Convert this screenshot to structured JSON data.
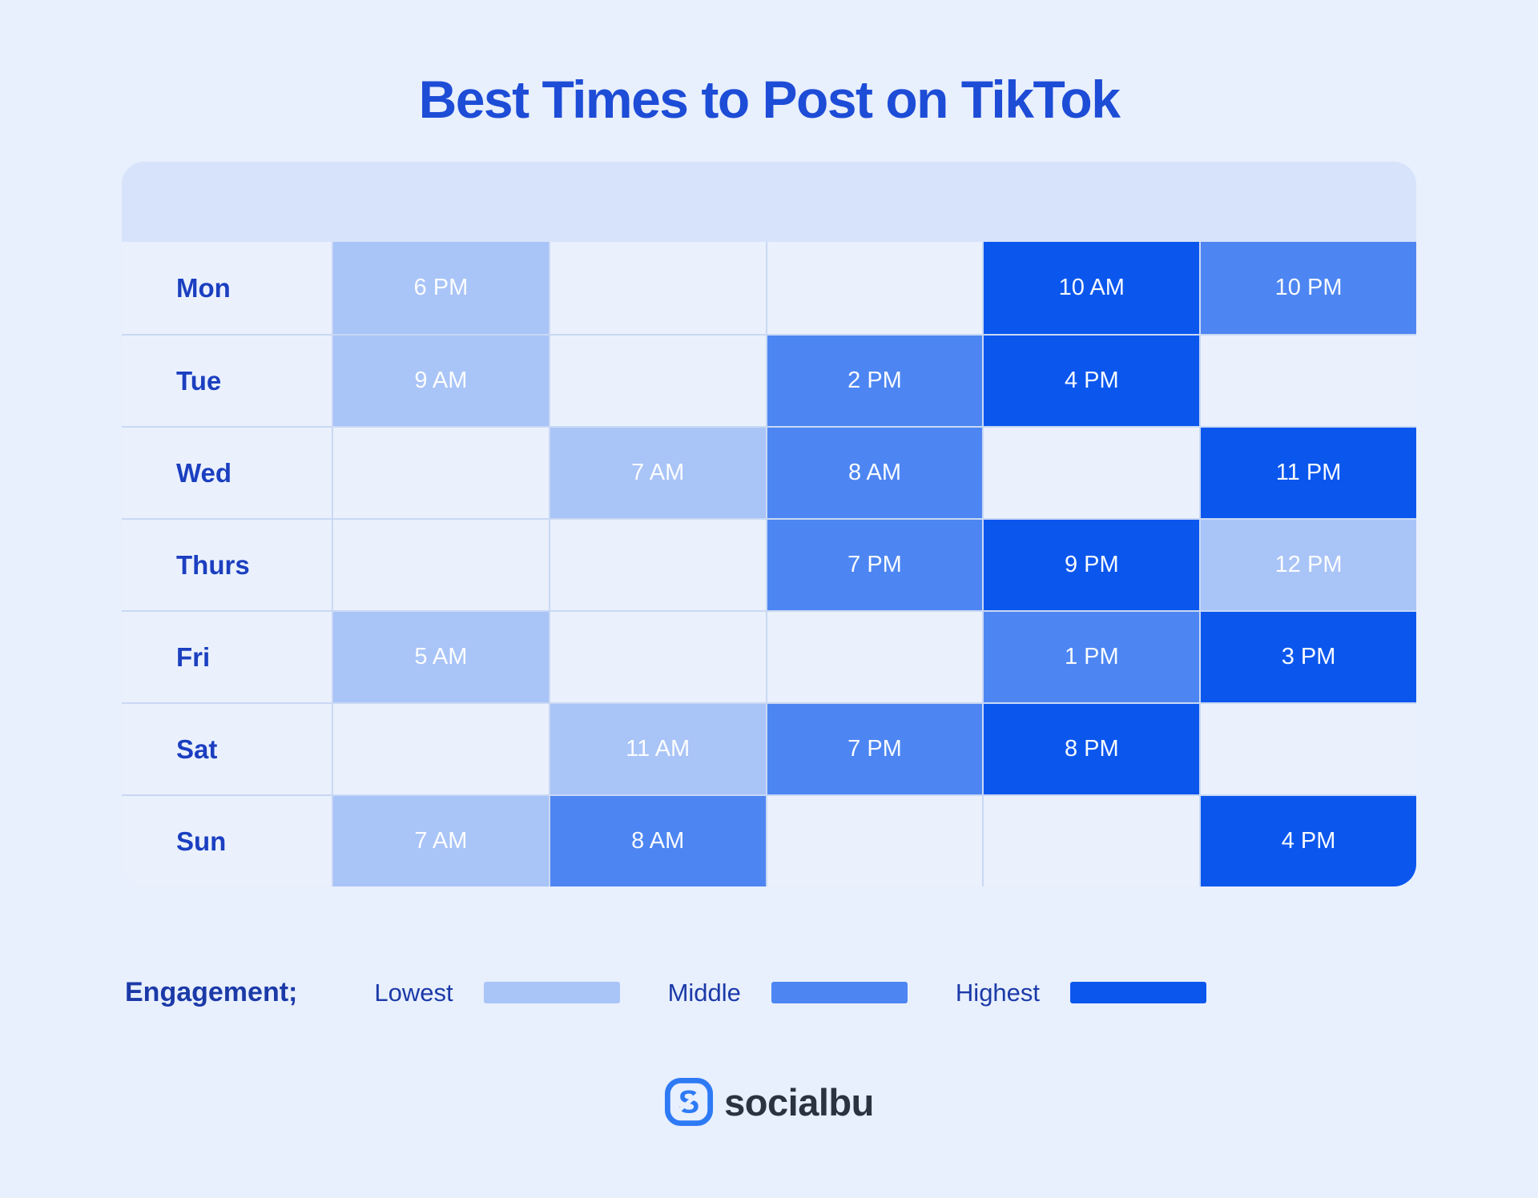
{
  "page": {
    "title": "Best Times to Post on TikTok"
  },
  "chart_data": {
    "type": "heatmap",
    "title": "Best Times to Post on TikTok",
    "rows": [
      "Mon",
      "Tue",
      "Wed",
      "Thurs",
      "Fri",
      "Sat",
      "Sun"
    ],
    "columns_count": 5,
    "engagement_levels": [
      "Lowest",
      "Middle",
      "Highest"
    ],
    "level_colors": {
      "Lowest": "#a9c4f7",
      "Middle": "#4d86f2",
      "Highest": "#0b57ee"
    },
    "entries": [
      {
        "day": "Mon",
        "col": 1,
        "time": "6 PM",
        "engagement": "Lowest"
      },
      {
        "day": "Mon",
        "col": 4,
        "time": "10 AM",
        "engagement": "Highest"
      },
      {
        "day": "Mon",
        "col": 5,
        "time": "10 PM",
        "engagement": "Middle"
      },
      {
        "day": "Tue",
        "col": 1,
        "time": "9 AM",
        "engagement": "Lowest"
      },
      {
        "day": "Tue",
        "col": 3,
        "time": "2 PM",
        "engagement": "Middle"
      },
      {
        "day": "Tue",
        "col": 4,
        "time": "4 PM",
        "engagement": "Highest"
      },
      {
        "day": "Wed",
        "col": 2,
        "time": "7 AM",
        "engagement": "Lowest"
      },
      {
        "day": "Wed",
        "col": 3,
        "time": "8 AM",
        "engagement": "Middle"
      },
      {
        "day": "Wed",
        "col": 5,
        "time": "11 PM",
        "engagement": "Highest"
      },
      {
        "day": "Thurs",
        "col": 3,
        "time": "7 PM",
        "engagement": "Middle"
      },
      {
        "day": "Thurs",
        "col": 4,
        "time": "9 PM",
        "engagement": "Highest"
      },
      {
        "day": "Thurs",
        "col": 5,
        "time": "12 PM",
        "engagement": "Lowest"
      },
      {
        "day": "Fri",
        "col": 1,
        "time": "5 AM",
        "engagement": "Lowest"
      },
      {
        "day": "Fri",
        "col": 4,
        "time": "1 PM",
        "engagement": "Middle"
      },
      {
        "day": "Fri",
        "col": 5,
        "time": "3 PM",
        "engagement": "Highest"
      },
      {
        "day": "Sat",
        "col": 2,
        "time": "11 AM",
        "engagement": "Lowest"
      },
      {
        "day": "Sat",
        "col": 3,
        "time": "7 PM",
        "engagement": "Middle"
      },
      {
        "day": "Sat",
        "col": 4,
        "time": "8 PM",
        "engagement": "Highest"
      },
      {
        "day": "Sun",
        "col": 1,
        "time": "7 AM",
        "engagement": "Lowest"
      },
      {
        "day": "Sun",
        "col": 2,
        "time": "8 AM",
        "engagement": "Middle"
      },
      {
        "day": "Sun",
        "col": 5,
        "time": "4 PM",
        "engagement": "Highest"
      }
    ]
  },
  "table": {
    "rows": [
      {
        "day": "Mon",
        "cells": [
          {
            "time": "6 PM",
            "level": "lowest"
          },
          null,
          null,
          {
            "time": "10 AM",
            "level": "highest"
          },
          {
            "time": "10 PM",
            "level": "middle"
          }
        ]
      },
      {
        "day": "Tue",
        "cells": [
          {
            "time": "9 AM",
            "level": "lowest"
          },
          null,
          {
            "time": "2 PM",
            "level": "middle"
          },
          {
            "time": "4 PM",
            "level": "highest"
          },
          null
        ]
      },
      {
        "day": "Wed",
        "cells": [
          null,
          {
            "time": "7 AM",
            "level": "lowest"
          },
          {
            "time": "8 AM",
            "level": "middle"
          },
          null,
          {
            "time": "11 PM",
            "level": "highest"
          }
        ]
      },
      {
        "day": "Thurs",
        "cells": [
          null,
          null,
          {
            "time": "7 PM",
            "level": "middle"
          },
          {
            "time": "9 PM",
            "level": "highest"
          },
          {
            "time": "12 PM",
            "level": "lowest"
          }
        ]
      },
      {
        "day": "Fri",
        "cells": [
          {
            "time": "5 AM",
            "level": "lowest"
          },
          null,
          null,
          {
            "time": "1 PM",
            "level": "middle"
          },
          {
            "time": "3 PM",
            "level": "highest"
          }
        ]
      },
      {
        "day": "Sat",
        "cells": [
          null,
          {
            "time": "11 AM",
            "level": "lowest"
          },
          {
            "time": "7 PM",
            "level": "middle"
          },
          {
            "time": "8 PM",
            "level": "highest"
          },
          null
        ]
      },
      {
        "day": "Sun",
        "cells": [
          {
            "time": "7 AM",
            "level": "lowest"
          },
          {
            "time": "8 AM",
            "level": "middle"
          },
          null,
          null,
          {
            "time": "4 PM",
            "level": "highest"
          }
        ]
      }
    ]
  },
  "legend": {
    "label": "Engagement;",
    "items": [
      {
        "name": "Lowest",
        "color": "#a9c4f7"
      },
      {
        "name": "Middle",
        "color": "#4d86f2"
      },
      {
        "name": "Highest",
        "color": "#0b57ee"
      }
    ]
  },
  "footer": {
    "brand": "socialbu"
  },
  "colors": {
    "page_bg": "#e8effd",
    "row_bg": "#eaf1fd",
    "header_band": "#d7e3fb",
    "lowest": "#a9c4f7",
    "middle": "#4d86f2",
    "highest": "#0b57ee",
    "title_text": "#1d4cd6",
    "day_text": "#1b3fc0",
    "legend_text": "#1b3aa8",
    "brand_text": "#2b3340",
    "brand_blue": "#2e7af5"
  }
}
